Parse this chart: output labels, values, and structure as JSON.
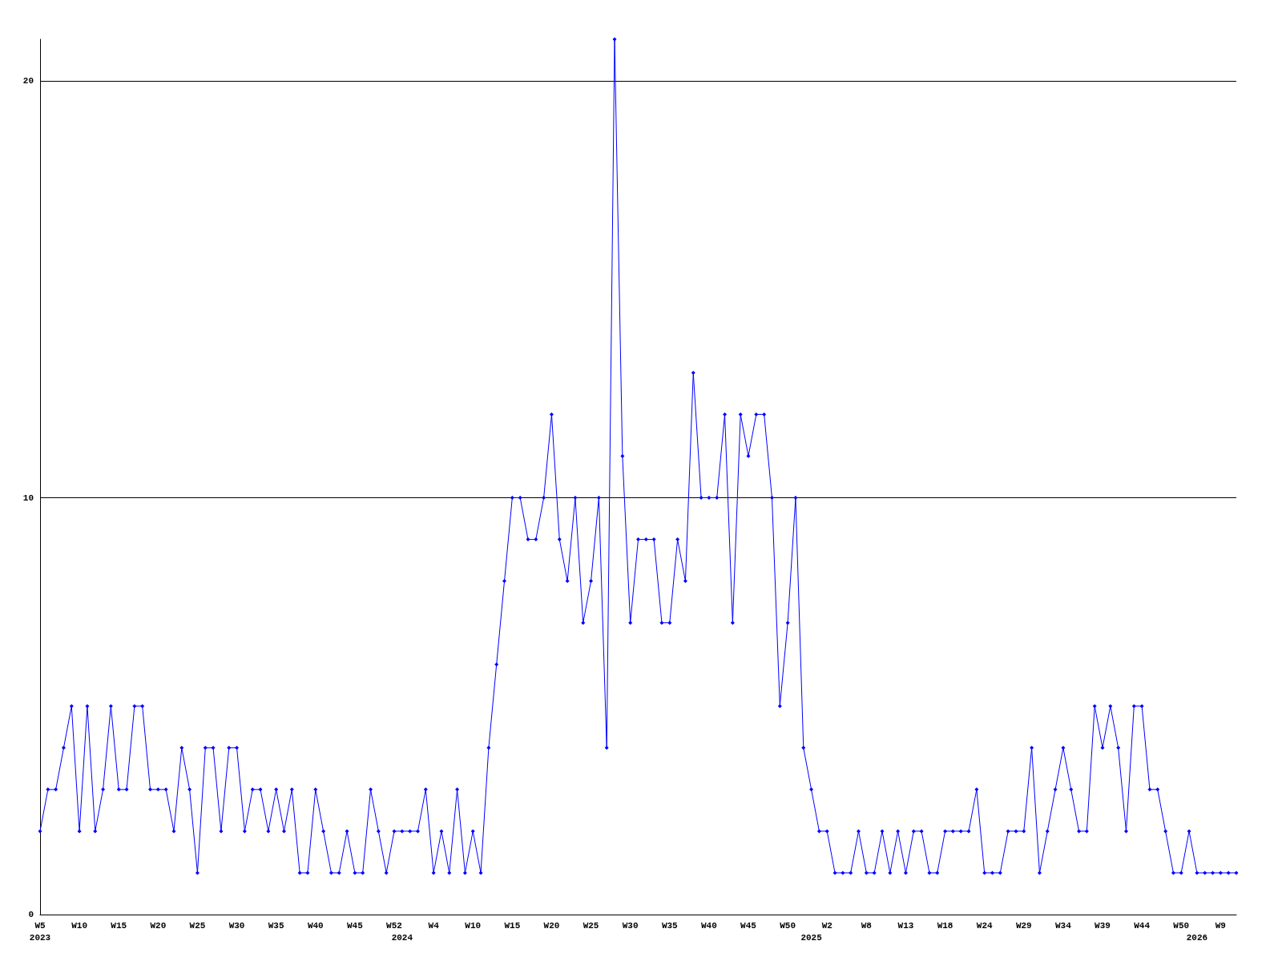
{
  "chart_data": {
    "type": "line",
    "categories": [
      "W5\n2023",
      null,
      null,
      null,
      null,
      "W10",
      null,
      null,
      null,
      null,
      "W15",
      null,
      null,
      null,
      null,
      "W20",
      null,
      null,
      null,
      null,
      "W25",
      null,
      null,
      null,
      null,
      "W30",
      null,
      null,
      null,
      null,
      "W35",
      null,
      null,
      null,
      null,
      "W40",
      null,
      null,
      null,
      null,
      "W45",
      null,
      null,
      null,
      null,
      "W52",
      "\n2024",
      null,
      null,
      null,
      "W4",
      null,
      null,
      null,
      null,
      "W10",
      null,
      null,
      null,
      null,
      "W15",
      null,
      null,
      null,
      null,
      "W20",
      null,
      null,
      null,
      null,
      "W25",
      null,
      null,
      null,
      null,
      "W30",
      null,
      null,
      null,
      null,
      "W35",
      null,
      null,
      null,
      null,
      "W40",
      null,
      null,
      null,
      null,
      "W45",
      null,
      null,
      null,
      null,
      "W50",
      null,
      null,
      "\n2025",
      null,
      "W2",
      null,
      null,
      null,
      null,
      "W8",
      null,
      null,
      null,
      null,
      "W13",
      null,
      null,
      null,
      null,
      "W18",
      null,
      null,
      null,
      null,
      "W24",
      null,
      null,
      null,
      null,
      "W29",
      null,
      null,
      null,
      null,
      "W34",
      null,
      null,
      null,
      null,
      "W39",
      null,
      null,
      null,
      null,
      "W44",
      null,
      null,
      null,
      null,
      "W50",
      null,
      "\n2026",
      null,
      null,
      "W9",
      null,
      null
    ],
    "series": [
      {
        "color": "#0000ff",
        "values": [
          2,
          3,
          3,
          4,
          5,
          2,
          5,
          2,
          3,
          5,
          3,
          3,
          5,
          5,
          3,
          3,
          3,
          2,
          4,
          3,
          1,
          4,
          4,
          2,
          4,
          4,
          2,
          3,
          3,
          2,
          3,
          2,
          3,
          1,
          1,
          3,
          2,
          1,
          1,
          2,
          1,
          1,
          3,
          2,
          1,
          2,
          2,
          2,
          2,
          3,
          1,
          2,
          1,
          3,
          1,
          2,
          1,
          4,
          6,
          8,
          10,
          10,
          9,
          9,
          10,
          12,
          9,
          8,
          10,
          7,
          8,
          10,
          4,
          21,
          11,
          7,
          9,
          9,
          9,
          7,
          7,
          9,
          8,
          13,
          10,
          10,
          10,
          12,
          7,
          12,
          11,
          12,
          12,
          10,
          5,
          7,
          10,
          4,
          3,
          2,
          2,
          1,
          1,
          1,
          2,
          1,
          1,
          2,
          1,
          2,
          1,
          2,
          2,
          1,
          1,
          2,
          2,
          2,
          2,
          3,
          1,
          1,
          1,
          2,
          2,
          2,
          4,
          1,
          2,
          3,
          4,
          3,
          2,
          2,
          5,
          4,
          5,
          4,
          2,
          5,
          5,
          3,
          3,
          2,
          1,
          1,
          2,
          1,
          1,
          1,
          1,
          1,
          1
        ]
      }
    ],
    "ylim": [
      0,
      21
    ],
    "yticks": [
      0,
      10,
      20
    ],
    "grid": "y",
    "marker": "diamond",
    "line_style": "solid"
  }
}
